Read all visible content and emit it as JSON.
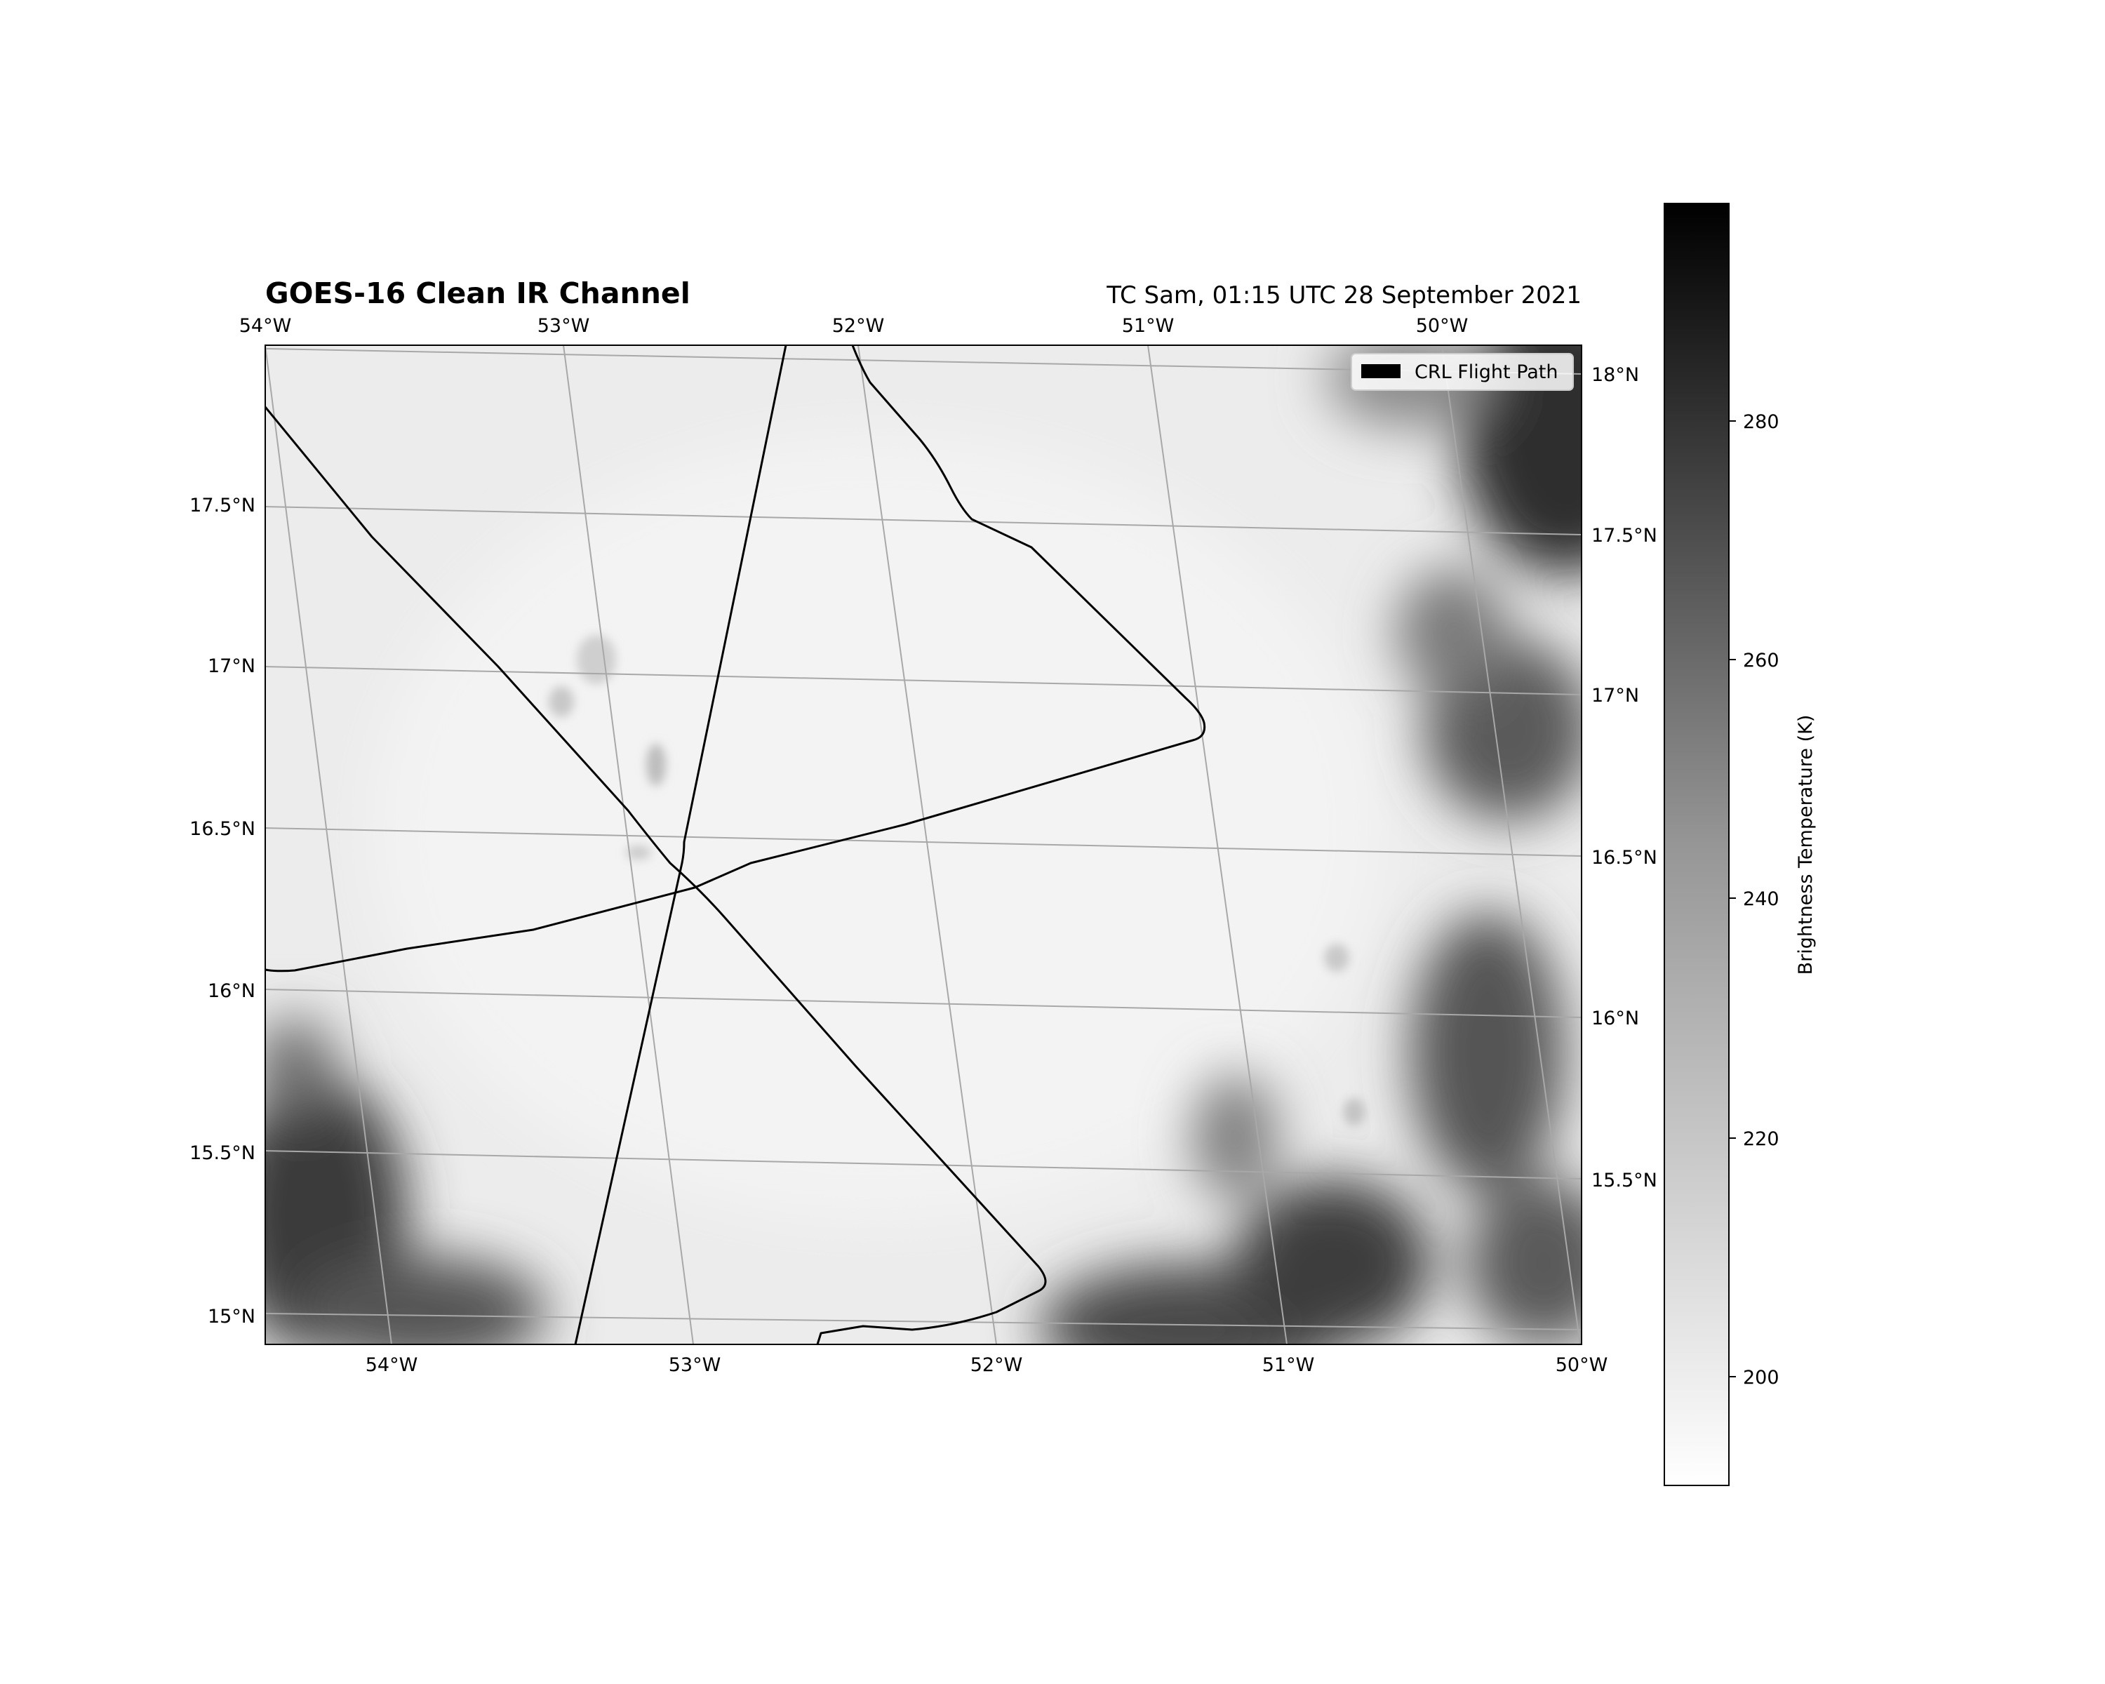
{
  "title_left": "GOES-16 Clean IR Channel",
  "title_right": "TC Sam, 01:15 UTC 28 September 2021",
  "legend": {
    "label": "CRL Flight Path",
    "swatch_color": "#000000"
  },
  "top_lon_labels": [
    "54°W",
    "53°W",
    "52°W",
    "51°W",
    "50°W"
  ],
  "bottom_lon_labels": [
    "54°W",
    "53°W",
    "52°W",
    "51°W",
    "50°W"
  ],
  "left_lat_labels": [
    "17.5°N",
    "17°N",
    "16.5°N",
    "16°N",
    "15.5°N",
    "15°N"
  ],
  "right_lat_labels": [
    "18°N",
    "17.5°N",
    "17°N",
    "16.5°N",
    "16°N",
    "15.5°N"
  ],
  "colorbar": {
    "label": "Brightness Temperature (K)",
    "ticks": [
      "200",
      "220",
      "240",
      "260",
      "280"
    ],
    "colormap": "Greys",
    "color_low": "#ffffff",
    "color_high": "#000000"
  },
  "colors": {
    "flight_path": "#000000",
    "gridline": "#a8a8a8",
    "cloud_top_cold": "#efefef",
    "clear_warm": "#404040"
  }
}
